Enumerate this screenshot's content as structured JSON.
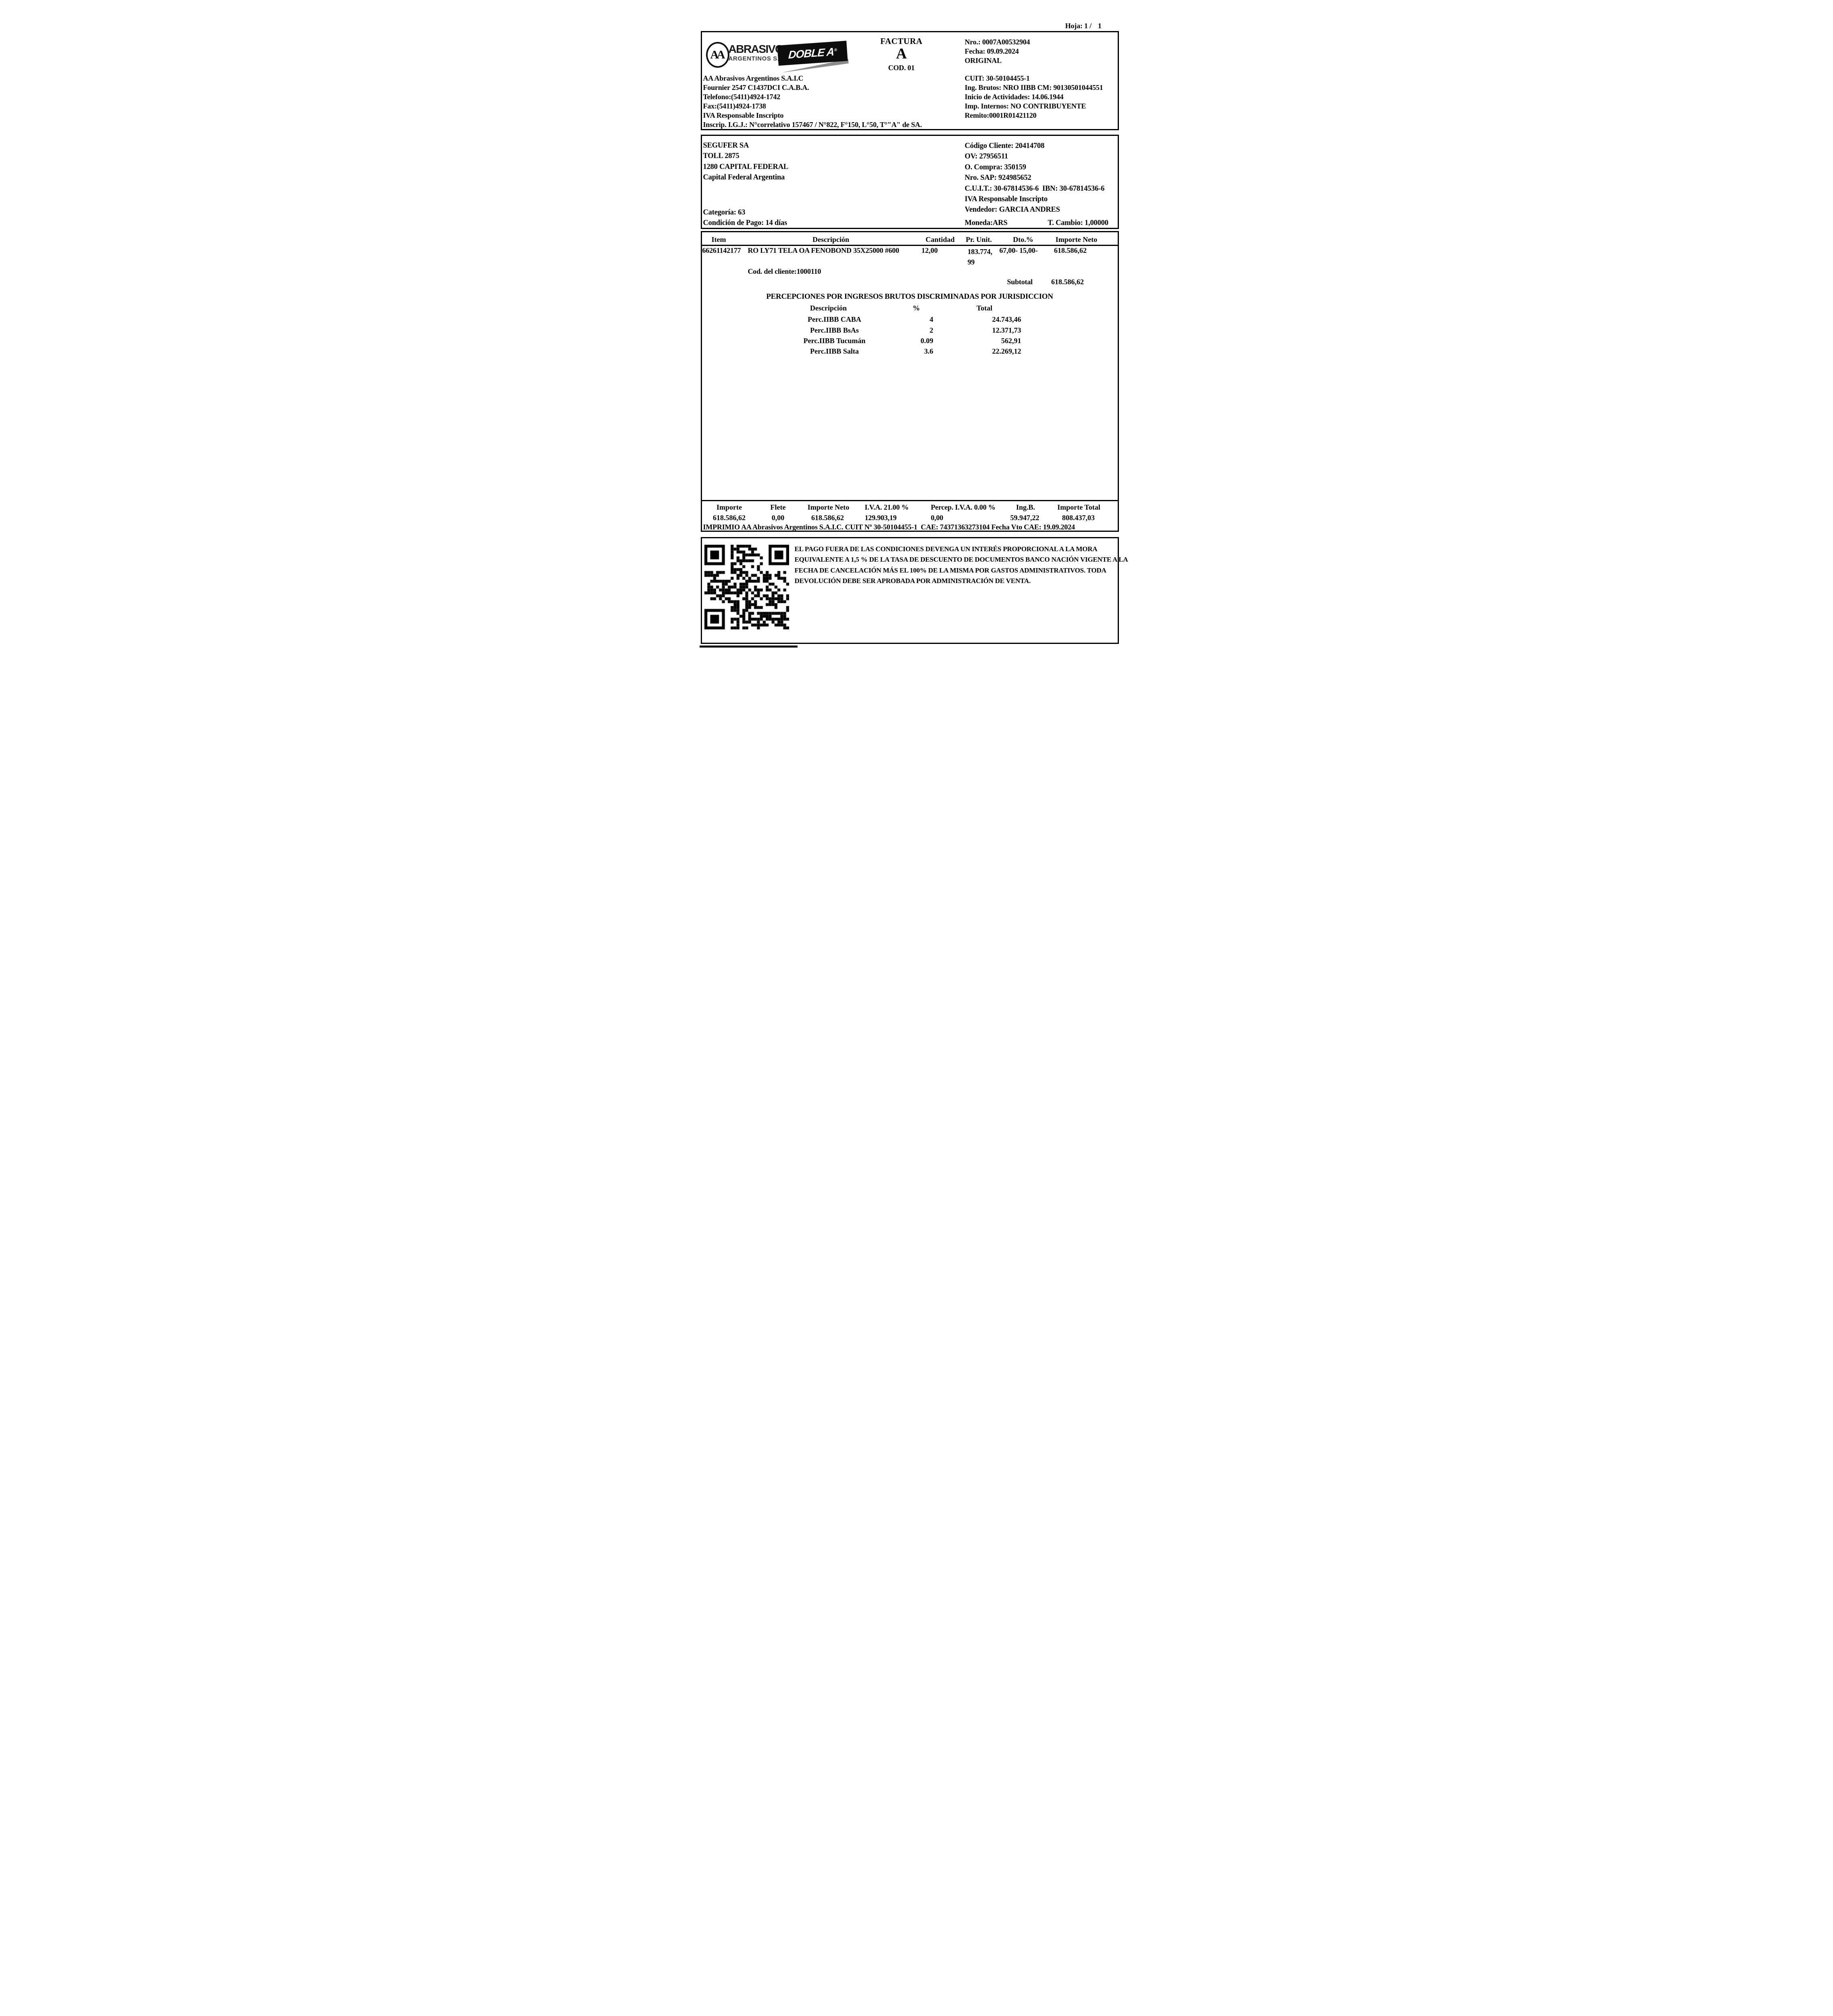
{
  "page": {
    "hoja_label": "Hoja: 1 /",
    "hoja_value": "1"
  },
  "logo": {
    "aa": "AA",
    "brand": "ABRASIVOS",
    "brand_sub": "ARGENTINOS S.A.I.C.",
    "doble_a": "DOBLE A",
    "registered": "®"
  },
  "invoice": {
    "type": "FACTURA",
    "letter": "A",
    "code": "COD. 01",
    "nro": "Nro.: 0007A00532904",
    "fecha": "Fecha: 09.09.2024",
    "copy": "ORIGINAL"
  },
  "company": {
    "left": [
      "AA Abrasivos Argentinos S.A.I.C",
      "Fournier 2547 C1437DCI C.A.B.A.",
      "Telefono:(5411)4924-1742",
      "Fax:(5411)4924-1738",
      "IVA Responsable Inscripto",
      "Inscrip. I.G.J.: N°correlativo 157467 / N°822, F°150, L°50, T°\"A\" de SA."
    ],
    "right": [
      "CUIT: 30-50104455-1",
      "Ing. Brutos: NRO IIBB CM: 90130501044551",
      "Inicio de Actividades: 14.06.1944",
      "Imp. Internos: NO CONTRIBUYENTE",
      "Remito:0001R01421120"
    ]
  },
  "client": {
    "left": [
      "SEGUFER SA",
      "TOLL 2875",
      "1280 CAPITAL FEDERAL",
      "Capital Federal Argentina"
    ],
    "right": [
      "Código Cliente: 20414708",
      "OV: 27956511",
      "O. Compra: 350159",
      "Nro. SAP: 924985652",
      "C.U.I.T.: 30-67814536-6  IBN: 30-67814536-6",
      "IVA Responsable Inscripto",
      "Vendedor: GARCIA ANDRES"
    ],
    "categoria": "Categoría: 63",
    "condicion": "Condición de Pago: 14 días",
    "moneda": "Moneda:ARS",
    "t_cambio": "T. Cambio: 1,00000"
  },
  "items": {
    "headers": {
      "item": "Item",
      "descripcion": "Descripción",
      "cantidad": "Cantidad",
      "pr_unit": "Pr. Unit.",
      "dto": "Dto.%",
      "importe_neto": "Importe Neto"
    },
    "row": {
      "item": "66261142177",
      "descripcion": "RO LY71 TELA OA FENOBOND 35X25000 #600",
      "cantidad": "12,00",
      "pr_unit": "183.774,99",
      "dto": "67,00- 15,00-",
      "importe_neto": "618.586,62"
    },
    "cod_cliente": "Cod. del cliente:1000110",
    "subtotal_label": "Subtotal",
    "subtotal_value": "618.586,62"
  },
  "percepciones": {
    "title": "PERCEPCIONES POR INGRESOS BRUTOS DISCRIMINADAS POR JURISDICCION",
    "headers": {
      "descripcion": "Descripción",
      "pct": "%",
      "total": "Total"
    },
    "rows": [
      {
        "descripcion": "Perc.IIBB CABA",
        "pct": "4",
        "total": "24.743,46"
      },
      {
        "descripcion": "Perc.IIBB BsAs",
        "pct": "2",
        "total": "12.371,73"
      },
      {
        "descripcion": "Perc.IIBB Tucumán",
        "pct": "0.09",
        "total": "562,91"
      },
      {
        "descripcion": "Perc.IIBB Salta",
        "pct": "3.6",
        "total": "22.269,12"
      }
    ]
  },
  "totals": {
    "columns": [
      {
        "label": "Importe",
        "value": "618.586,62"
      },
      {
        "label": "Flete",
        "value": "0,00"
      },
      {
        "label": "Importe Neto",
        "value": "618.586,62"
      },
      {
        "label": "I.V.A. 21.00 %",
        "value": "129.903,19"
      },
      {
        "label": "Percep. I.V.A. 0.00 %",
        "value": "0,00"
      },
      {
        "label": "Ing.B.",
        "value": "59.947,22"
      },
      {
        "label": "Importe Total",
        "value": "808.437,03"
      }
    ],
    "imprimio": "IMPRIMIO AA Abrasivos Argentinos S.A.I.C. CUIT Nº 30-50104455-1  CAE: 74371363273104 Fecha Vto CAE: 19.09.2024"
  },
  "footer": {
    "qr": "qr-code",
    "legal": [
      "EL PAGO FUERA DE LAS CONDICIONES DEVENGA UN INTERÉS PROPORCIONAL A LA MORA",
      "EQUIVALENTE A 1,5 % DE LA TASA DE DESCUENTO DE DOCUMENTOS BANCO NACIÓN VIGENTE A LA",
      "FECHA DE CANCELACIÓN MÁS EL 100% DE LA MISMA POR GASTOS ADMINISTRATIVOS. TODA",
      "DEVOLUCIÓN DEBE SER APROBADA POR ADMINISTRACIÓN DE VENTA."
    ]
  }
}
